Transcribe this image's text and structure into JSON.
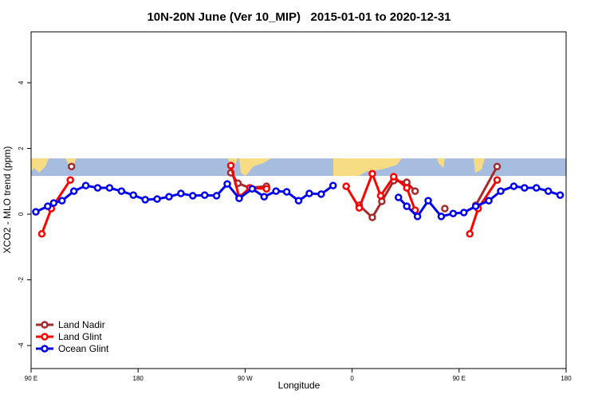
{
  "chart_data": {
    "type": "line",
    "title": "10N-20N June (Ver 10_MIP)   2015-01-01 to 2020-12-31",
    "x_label": "Longitude",
    "y_label": "XCO2 - MLO trend (ppm)",
    "xlim": [
      90,
      540
    ],
    "ylim": [
      -4.7,
      5.55
    ],
    "xticks": [
      {
        "value": 90,
        "label": "90 E"
      },
      180,
      {
        "value": 270,
        "label": "90 W"
      },
      {
        "value": 360,
        "label": "0"
      },
      {
        "value": 450,
        "label": "90 E"
      },
      {
        "value": 540,
        "label": "180"
      }
    ],
    "yticks": [
      -4,
      -2,
      0,
      2,
      4
    ],
    "legend": "bottom-left",
    "series": [
      {
        "name": "Land Nadir",
        "color": "#a52a2a",
        "x": [
          124,
          null,
          258,
          264,
          274,
          288,
          null,
          366,
          377,
          385,
          395,
          406,
          413,
          null,
          438,
          null,
          464,
          482
        ],
        "values": [
          1.45,
          null,
          1.26,
          0.94,
          0.8,
          0.85,
          null,
          0.27,
          -0.1,
          0.39,
          1.02,
          0.97,
          0.7,
          null,
          0.17,
          null,
          0.27,
          1.45
        ]
      },
      {
        "name": "Land Glint",
        "color": "#ff0000",
        "x": [
          99,
          107,
          123,
          null,
          258,
          265,
          274,
          288,
          null,
          355,
          366,
          377,
          384,
          395,
          406,
          413,
          null,
          459,
          466,
          482
        ],
        "values": [
          -0.6,
          0.17,
          1.04,
          null,
          1.48,
          0.51,
          0.8,
          0.77,
          null,
          0.85,
          0.19,
          1.23,
          0.56,
          1.14,
          0.8,
          0.12,
          null,
          -0.6,
          0.17,
          1.04
        ]
      },
      {
        "name": "Ocean Glint",
        "color": "#0000ee",
        "x": [
          94,
          104,
          109,
          116,
          126,
          136,
          146,
          156,
          166,
          176,
          186,
          196,
          206,
          216,
          226,
          236,
          246,
          255,
          265,
          276,
          286,
          296,
          305,
          315,
          324,
          334,
          344,
          null,
          399,
          406,
          415,
          424,
          435,
          445,
          454,
          464,
          475,
          485,
          496,
          505,
          515,
          525,
          535
        ],
        "values": [
          0.07,
          0.24,
          0.34,
          0.41,
          0.7,
          0.87,
          0.8,
          0.8,
          0.7,
          0.58,
          0.44,
          0.46,
          0.53,
          0.63,
          0.56,
          0.58,
          0.56,
          0.92,
          0.48,
          0.77,
          0.53,
          0.7,
          0.68,
          0.41,
          0.63,
          0.61,
          0.87,
          null,
          0.51,
          0.24,
          -0.07,
          0.41,
          -0.07,
          0.02,
          0.05,
          0.24,
          0.41,
          0.7,
          0.85,
          0.8,
          0.8,
          0.7,
          0.58
        ]
      }
    ]
  }
}
